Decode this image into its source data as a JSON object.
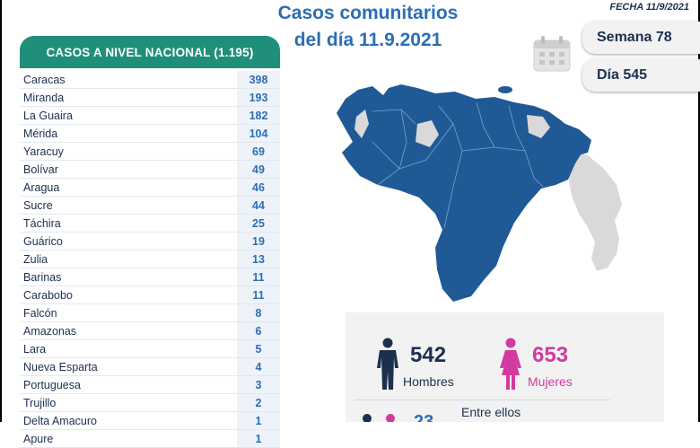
{
  "header": {
    "title_line1": "Casos comunitarios",
    "title_line2": "del día 11.9.2021",
    "fecha": "FECHA 11/9/2021"
  },
  "week": {
    "label": "Semana 78"
  },
  "day": {
    "label": "Día 545"
  },
  "table": {
    "title": "CASOS A NIVEL NACIONAL (1.195)",
    "rows": [
      {
        "name": "Caracas",
        "value": "398"
      },
      {
        "name": "Miranda",
        "value": "193"
      },
      {
        "name": "La Guaira",
        "value": "182"
      },
      {
        "name": "Mérida",
        "value": "104"
      },
      {
        "name": "Yaracuy",
        "value": "69"
      },
      {
        "name": "Bolívar",
        "value": "49"
      },
      {
        "name": "Aragua",
        "value": "46"
      },
      {
        "name": "Sucre",
        "value": "44"
      },
      {
        "name": "Táchira",
        "value": "25"
      },
      {
        "name": "Guárico",
        "value": "19"
      },
      {
        "name": "Zulia",
        "value": "13"
      },
      {
        "name": "Barinas",
        "value": "11"
      },
      {
        "name": "Carabobo",
        "value": "11"
      },
      {
        "name": "Falcón",
        "value": "8"
      },
      {
        "name": "Amazonas",
        "value": "6"
      },
      {
        "name": "Lara",
        "value": "5"
      },
      {
        "name": "Nueva Esparta",
        "value": "4"
      },
      {
        "name": "Portuguesa",
        "value": "3"
      },
      {
        "name": "Trujillo",
        "value": "2"
      },
      {
        "name": "Delta Amacuro",
        "value": "1"
      },
      {
        "name": "Apure",
        "value": "1"
      }
    ]
  },
  "gender": {
    "men": {
      "count": "542",
      "label": "Hombres"
    },
    "women": {
      "count": "653",
      "label": "Mujeres"
    },
    "partial_count": "23",
    "entre_label": "Entre ellos"
  },
  "colors": {
    "title_blue": "#2c6eb5",
    "header_green": "#1f8f79",
    "map_blue": "#1f5a96",
    "map_grey": "#d9d9d9",
    "men_color": "#1d2f4f",
    "women_color": "#d23aa0"
  }
}
